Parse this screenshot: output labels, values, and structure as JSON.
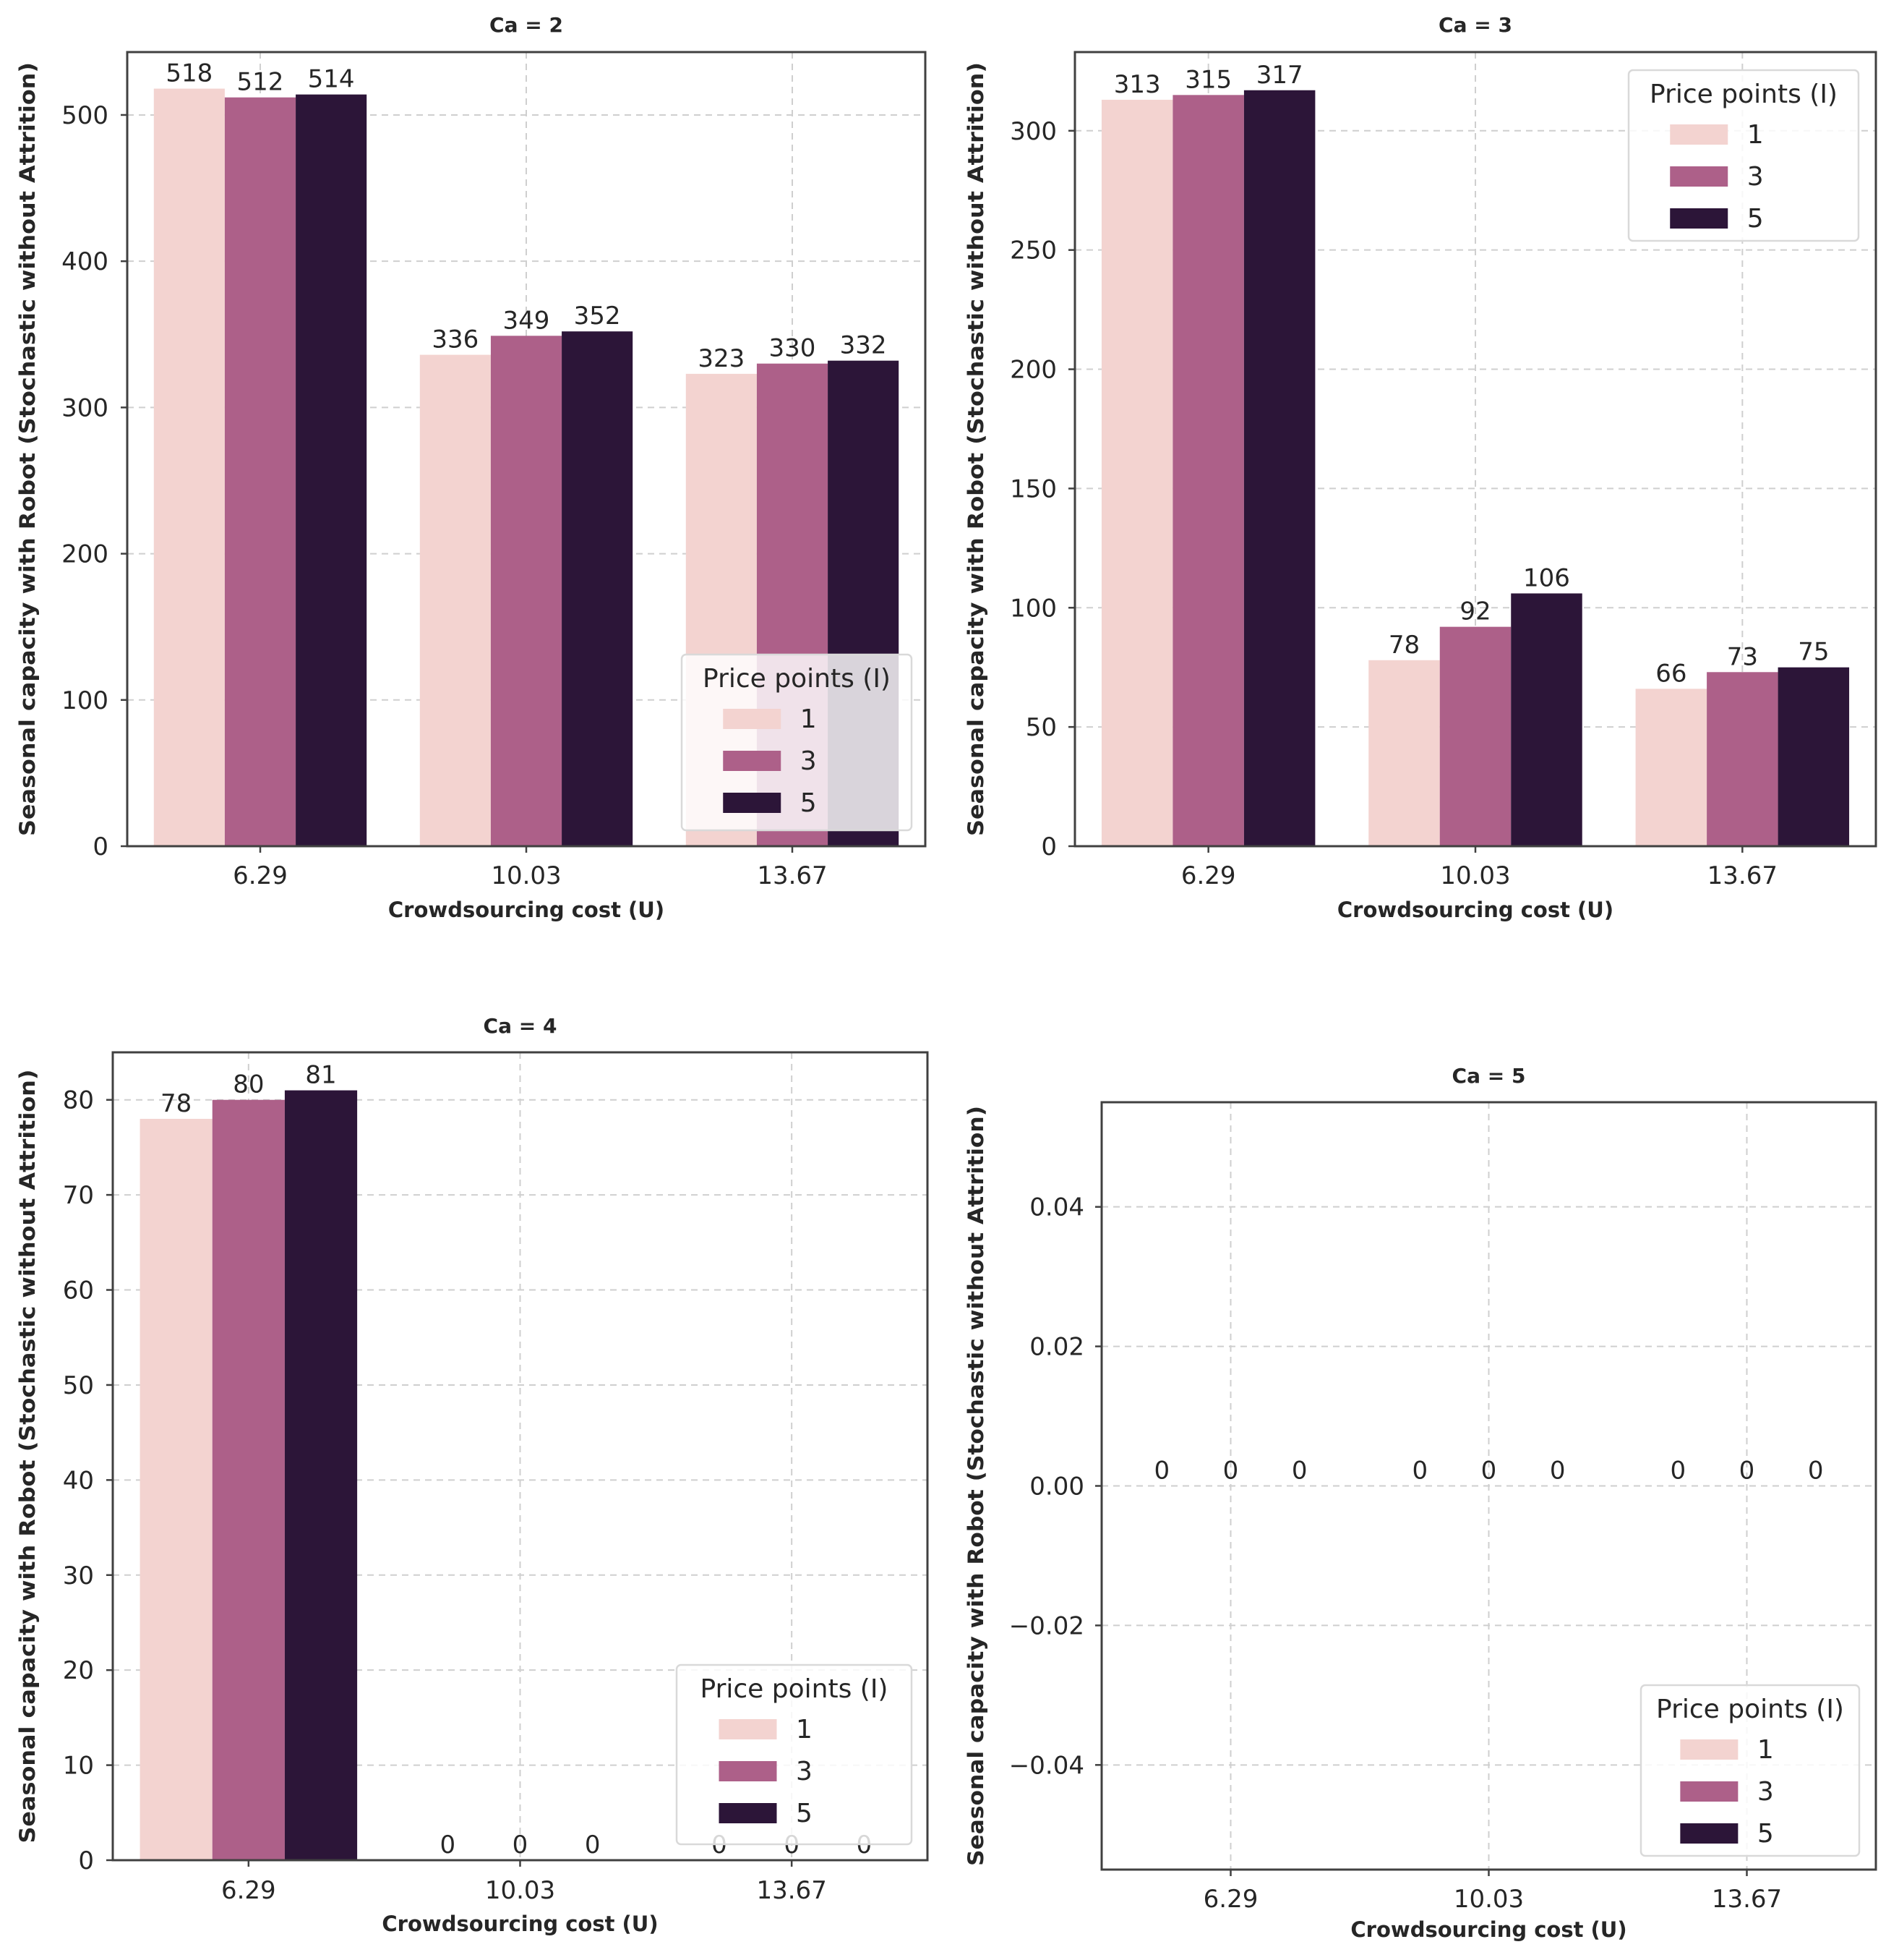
{
  "figure": {
    "colors": {
      "series_1": "#f3d3d0",
      "series_3": "#ad6089",
      "series_5": "#2c1538",
      "axis": "#404040",
      "grid": "#cfcfcf",
      "text": "#262626"
    }
  },
  "chart_data": [
    {
      "type": "bar",
      "title": "Ca = 2",
      "xlabel": "Crowdsourcing cost (U)",
      "ylabel": "Seasonal capacity with Robot (Stochastic without Attrition)",
      "categories": [
        "6.29",
        "10.03",
        "13.67"
      ],
      "ylim": [
        0,
        543
      ],
      "yticks": [
        0,
        100,
        200,
        300,
        400,
        500
      ],
      "ytick_labels": [
        "0",
        "100",
        "200",
        "300",
        "400",
        "500"
      ],
      "grid": true,
      "legend": {
        "title": "Price points (I)",
        "position": "lower-right",
        "entries": [
          "1",
          "3",
          "5"
        ]
      },
      "series": [
        {
          "name": "1",
          "values": [
            518,
            336,
            323
          ],
          "labels": [
            "518",
            "336",
            "323"
          ]
        },
        {
          "name": "3",
          "values": [
            512,
            349,
            330
          ],
          "labels": [
            "512",
            "349",
            "330"
          ]
        },
        {
          "name": "5",
          "values": [
            514,
            352,
            332
          ],
          "labels": [
            "514",
            "352",
            "332"
          ]
        }
      ]
    },
    {
      "type": "bar",
      "title": "Ca = 3",
      "xlabel": "Crowdsourcing cost (U)",
      "ylabel": "Seasonal capacity with Robot (Stochastic without Attrition)",
      "categories": [
        "6.29",
        "10.03",
        "13.67"
      ],
      "ylim": [
        0,
        333
      ],
      "yticks": [
        0,
        50,
        100,
        150,
        200,
        250,
        300
      ],
      "ytick_labels": [
        "0",
        "50",
        "100",
        "150",
        "200",
        "250",
        "300"
      ],
      "grid": true,
      "legend": {
        "title": "Price points (I)",
        "position": "upper-right",
        "entries": [
          "1",
          "3",
          "5"
        ]
      },
      "series": [
        {
          "name": "1",
          "values": [
            313,
            78,
            66
          ],
          "labels": [
            "313",
            "78",
            "66"
          ]
        },
        {
          "name": "3",
          "values": [
            315,
            92,
            73
          ],
          "labels": [
            "315",
            "92",
            "73"
          ]
        },
        {
          "name": "5",
          "values": [
            317,
            106,
            75
          ],
          "labels": [
            "317",
            "106",
            "75"
          ]
        }
      ]
    },
    {
      "type": "bar",
      "title": "Ca = 4",
      "xlabel": "Crowdsourcing cost (U)",
      "ylabel": "Seasonal capacity with Robot (Stochastic without Attrition)",
      "categories": [
        "6.29",
        "10.03",
        "13.67"
      ],
      "ylim": [
        0,
        85
      ],
      "yticks": [
        0,
        10,
        20,
        30,
        40,
        50,
        60,
        70,
        80
      ],
      "ytick_labels": [
        "0",
        "10",
        "20",
        "30",
        "40",
        "50",
        "60",
        "70",
        "80"
      ],
      "grid": true,
      "legend": {
        "title": "Price points (I)",
        "position": "lower-right",
        "entries": [
          "1",
          "3",
          "5"
        ]
      },
      "series": [
        {
          "name": "1",
          "values": [
            78,
            0,
            0
          ],
          "labels": [
            "78",
            "0",
            "0"
          ]
        },
        {
          "name": "3",
          "values": [
            80,
            0,
            0
          ],
          "labels": [
            "80",
            "0",
            "0"
          ]
        },
        {
          "name": "5",
          "values": [
            81,
            0,
            0
          ],
          "labels": [
            "81",
            "0",
            "0"
          ]
        }
      ]
    },
    {
      "type": "bar",
      "title": "Ca = 5",
      "xlabel": "Crowdsourcing cost (U)",
      "ylabel": "Seasonal capacity with Robot (Stochastic without Attrition)",
      "categories": [
        "6.29",
        "10.03",
        "13.67"
      ],
      "ylim": [
        -0.055,
        0.055
      ],
      "yticks": [
        -0.04,
        -0.02,
        0.0,
        0.02,
        0.04
      ],
      "ytick_labels": [
        "−0.04",
        "−0.02",
        "0.00",
        "0.02",
        "0.04"
      ],
      "grid": true,
      "legend": {
        "title": "Price points (I)",
        "position": "lower-right",
        "entries": [
          "1",
          "3",
          "5"
        ]
      },
      "series": [
        {
          "name": "1",
          "values": [
            0,
            0,
            0
          ],
          "labels": [
            "0",
            "0",
            "0"
          ]
        },
        {
          "name": "3",
          "values": [
            0,
            0,
            0
          ],
          "labels": [
            "0",
            "0",
            "0"
          ]
        },
        {
          "name": "5",
          "values": [
            0,
            0,
            0
          ],
          "labels": [
            "0",
            "0",
            "0"
          ]
        }
      ]
    }
  ]
}
